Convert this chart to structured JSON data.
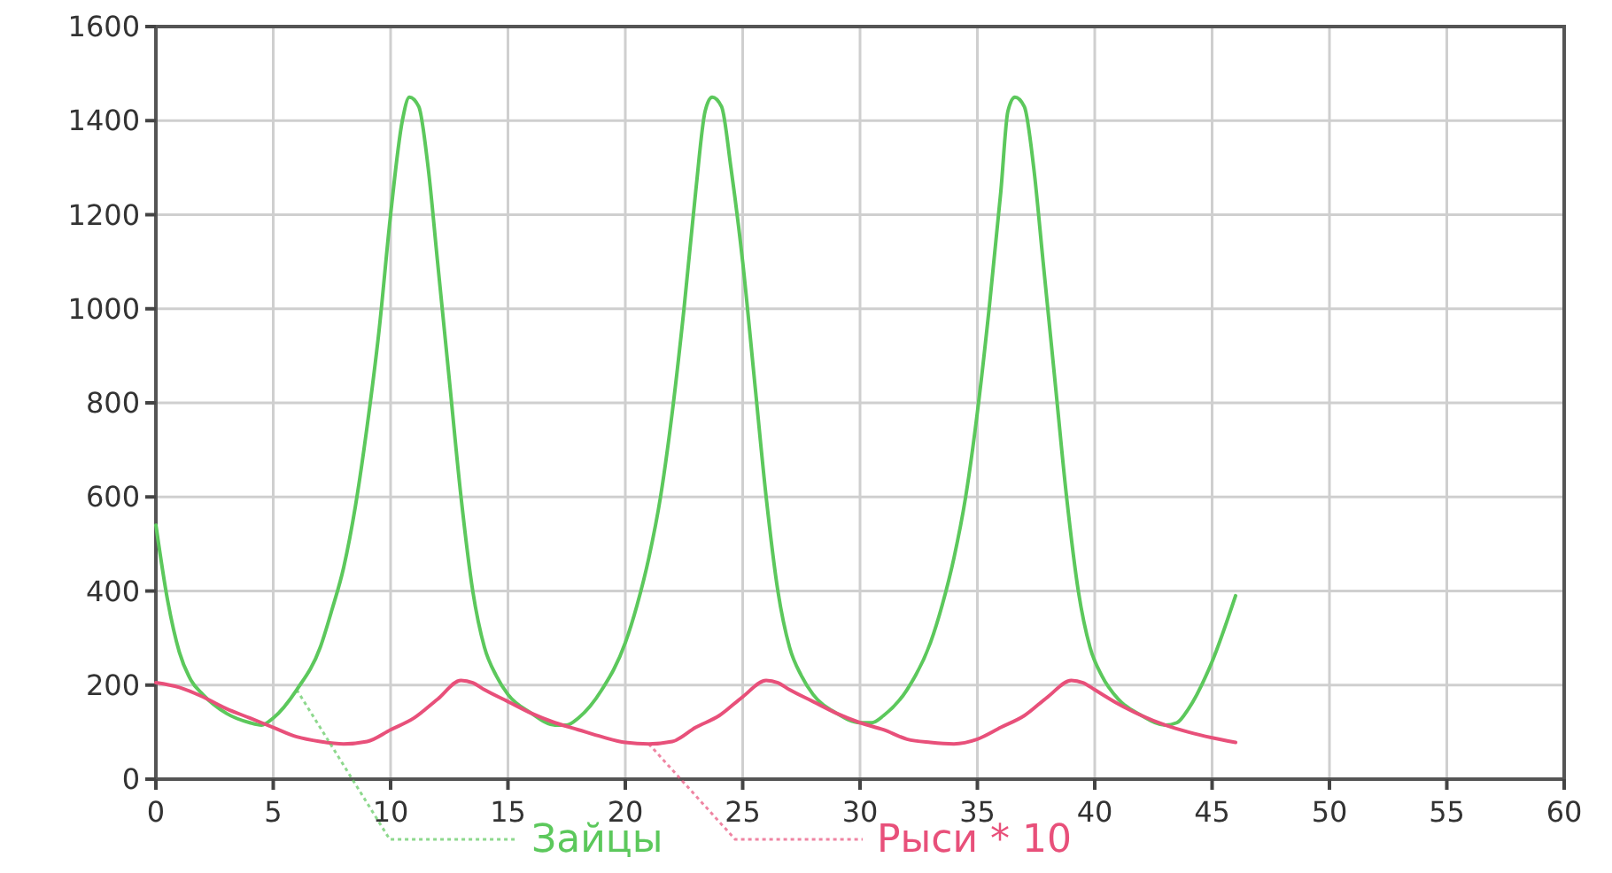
{
  "chart_data": {
    "type": "line",
    "xlim": [
      0,
      60
    ],
    "xticks": [
      0,
      5,
      10,
      15,
      20,
      25,
      30,
      35,
      40,
      45,
      50,
      55,
      60
    ],
    "ylim": [
      0,
      1600
    ],
    "yticks": [
      0,
      200,
      400,
      600,
      800,
      1000,
      1200,
      1400,
      1600
    ],
    "grid": true,
    "series": [
      {
        "name": "Зайцы",
        "color": "#5cc85c",
        "x": [
          0,
          0.5,
          1,
          1.5,
          2,
          3,
          4,
          4.5,
          5,
          6,
          7,
          7.5,
          8,
          8.5,
          9,
          9.5,
          10,
          10.5,
          10.8,
          11.2,
          11.6,
          12,
          12.5,
          13,
          13.5,
          14,
          14.5,
          15,
          16,
          17,
          17.5,
          18,
          19,
          20,
          20.5,
          21,
          21.5,
          22,
          22.5,
          23,
          23.4,
          23.7,
          24.1,
          24.5,
          25,
          25.5,
          26,
          26.5,
          27,
          27.5,
          28,
          29,
          30,
          30.5,
          31,
          32,
          33,
          33.5,
          34,
          34.5,
          35,
          35.5,
          36,
          36.3,
          36.6,
          37,
          37.4,
          37.8,
          38.3,
          38.8,
          39.3,
          39.8,
          40.3,
          41,
          42,
          43,
          43.5,
          44,
          45,
          46
        ],
        "values": [
          540,
          380,
          270,
          210,
          180,
          140,
          120,
          115,
          130,
          190,
          280,
          360,
          450,
          580,
          750,
          950,
          1200,
          1400,
          1450,
          1430,
          1300,
          1100,
          850,
          600,
          400,
          280,
          220,
          180,
          140,
          115,
          115,
          130,
          190,
          290,
          370,
          470,
          600,
          780,
          1000,
          1250,
          1420,
          1450,
          1430,
          1300,
          1100,
          850,
          600,
          400,
          280,
          220,
          180,
          140,
          120,
          120,
          135,
          190,
          290,
          370,
          470,
          600,
          780,
          1000,
          1250,
          1420,
          1450,
          1430,
          1300,
          1100,
          850,
          600,
          400,
          280,
          220,
          170,
          135,
          115,
          120,
          150,
          250,
          390
        ]
      },
      {
        "name": "Рыси * 10",
        "color": "#e8507a",
        "x": [
          0,
          1,
          2,
          3,
          4,
          5,
          6,
          7,
          8,
          9,
          10,
          11,
          12,
          13,
          13.5,
          14,
          15,
          16,
          17,
          18,
          19,
          20,
          21,
          22,
          23,
          24,
          25,
          26,
          26.5,
          27,
          28,
          29,
          30,
          31,
          32,
          33,
          34,
          35,
          36,
          37,
          38,
          39,
          39.5,
          40,
          41,
          42,
          43,
          44,
          45,
          46
        ],
        "values": [
          205,
          195,
          175,
          150,
          130,
          110,
          90,
          80,
          75,
          80,
          105,
          130,
          170,
          210,
          205,
          190,
          165,
          140,
          120,
          105,
          90,
          78,
          75,
          80,
          110,
          135,
          175,
          210,
          205,
          190,
          165,
          140,
          120,
          105,
          85,
          78,
          75,
          85,
          110,
          135,
          175,
          210,
          205,
          190,
          160,
          135,
          115,
          100,
          88,
          78
        ]
      }
    ]
  }
}
